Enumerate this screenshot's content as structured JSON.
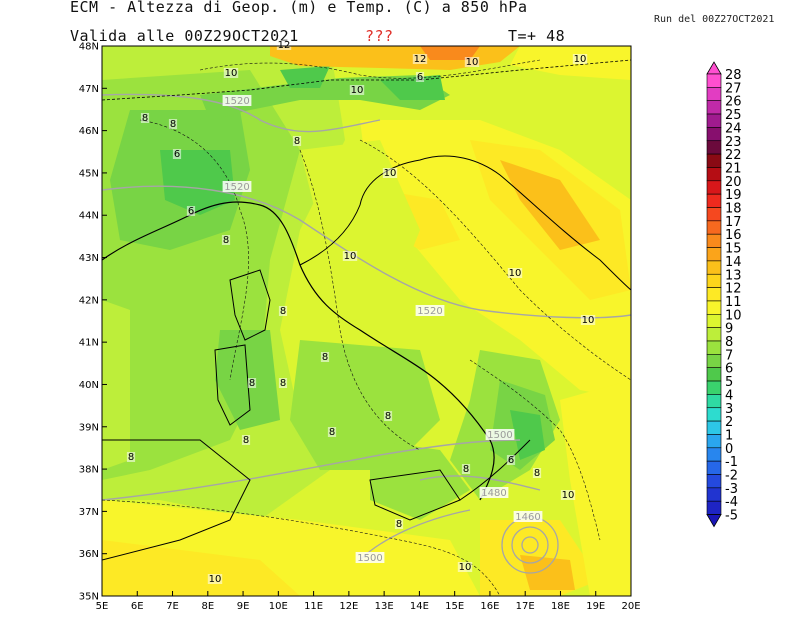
{
  "header": {
    "title": "ECM - Altezza di Geop. (m) e Temp. (C) a 850 hPa",
    "valid": "Valida alle 00Z29OCT2021",
    "marker": "???",
    "step": "T=+ 48",
    "run": "Run del 00Z27OCT2021"
  },
  "axes": {
    "lat": [
      "48N",
      "47N",
      "46N",
      "45N",
      "44N",
      "43N",
      "42N",
      "41N",
      "40N",
      "39N",
      "38N",
      "37N",
      "36N",
      "35N"
    ],
    "lon": [
      "5E",
      "6E",
      "7E",
      "8E",
      "9E",
      "10E",
      "11E",
      "12E",
      "13E",
      "14E",
      "15E",
      "16E",
      "17E",
      "18E",
      "19E",
      "20E"
    ]
  },
  "colorbar": {
    "labels": [
      "28",
      "27",
      "26",
      "25",
      "24",
      "23",
      "22",
      "21",
      "20",
      "19",
      "18",
      "17",
      "16",
      "15",
      "14",
      "13",
      "12",
      "11",
      "10",
      "9",
      "8",
      "7",
      "6",
      "5",
      "4",
      "3",
      "2",
      "1",
      "0",
      "-1",
      "-2",
      "-3",
      "-4",
      "-5"
    ],
    "colors": [
      "#ff4fd0",
      "#e23dc2",
      "#c02aa8",
      "#a01b8f",
      "#870f6e",
      "#6b0a3c",
      "#8a0a14",
      "#b50d14",
      "#d8171a",
      "#ee2a1e",
      "#f5481f",
      "#f7691f",
      "#f98a1c",
      "#fba41a",
      "#fbc01a",
      "#fdd51b",
      "#fde925",
      "#f8f52b",
      "#dcf530",
      "#bdee3a",
      "#9be23e",
      "#78d445",
      "#4fc94b",
      "#3ad26d",
      "#2fdaa3",
      "#2ddccf",
      "#2dc7e6",
      "#2aa6ee",
      "#2886ee",
      "#2667e8",
      "#2449de",
      "#2134d0",
      "#1e24c4",
      "#1a16b6"
    ]
  },
  "contour_labels": {
    "geopotential": [
      "1520",
      "1520",
      "1520",
      "1500",
      "1480",
      "1460",
      "1500"
    ],
    "temperature": [
      "12",
      "12",
      "10",
      "10",
      "10",
      "10",
      "10",
      "10",
      "10",
      "10",
      "10",
      "10",
      "10",
      "8",
      "8",
      "8",
      "8",
      "8",
      "8",
      "8",
      "8",
      "8",
      "8",
      "8",
      "8",
      "8",
      "8",
      "8",
      "6",
      "6",
      "6",
      "6"
    ]
  }
}
